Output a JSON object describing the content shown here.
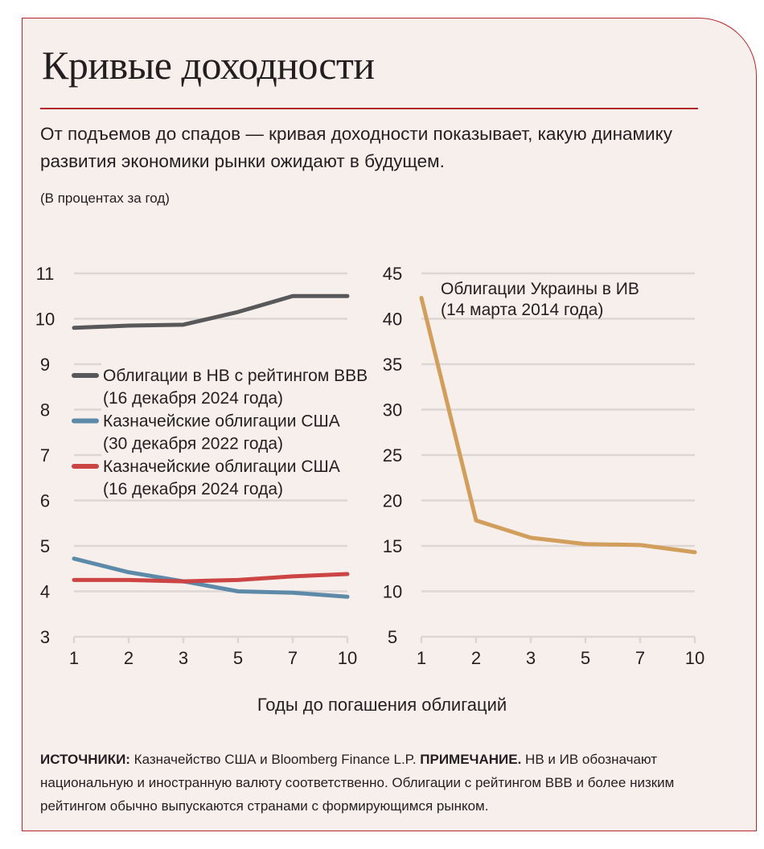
{
  "title": "Кривые доходности",
  "subtitle": "От подъемов до спадов — кривая доходности показывает, какую динамику развития экономики рынки ожидают в будущем.",
  "unit": "(В процентах за год)",
  "xlabel": "Годы до погашения облигаций",
  "footer": {
    "sources_label": "ИСТОЧНИКИ:",
    "sources_text": " Казначейство США и Bloomberg Finance L.P.  ",
    "note_label": "ПРИМЕЧАНИЕ.",
    "note_text": " НВ и ИВ обозначают национальную и иностранную валюту соответственно. Облигации с рейтингом BBB и более низким рейтингом обычно выпускаются странами с формирующимся рынком."
  },
  "chart_data": [
    {
      "type": "line",
      "categories": [
        "1",
        "2",
        "3",
        "5",
        "7",
        "10"
      ],
      "ylim": [
        3,
        11
      ],
      "yticks": [
        "3",
        "4",
        "5",
        "6",
        "7",
        "8",
        "9",
        "10",
        "11"
      ],
      "grid": true,
      "legend": "center-left",
      "series": [
        {
          "name": "Облигации в НВ с рейтингом BBB",
          "name2": "(16 декабря 2024 года)",
          "color": "#58585a",
          "values": [
            9.8,
            9.85,
            9.87,
            10.15,
            10.5,
            10.5
          ]
        },
        {
          "name": "Казначейские облигации США",
          "name2": "(30 декабря 2022 года)",
          "color": "#5d8aa8",
          "values": [
            4.72,
            4.42,
            4.22,
            4.0,
            3.97,
            3.88
          ]
        },
        {
          "name": "Казначейские облигации США",
          "name2": "(16 декабря 2024 года)",
          "color": "#cc4444",
          "values": [
            4.25,
            4.25,
            4.22,
            4.25,
            4.33,
            4.38
          ]
        }
      ]
    },
    {
      "type": "line",
      "categories": [
        "1",
        "2",
        "3",
        "5",
        "7",
        "10"
      ],
      "ylim": [
        5,
        45
      ],
      "yticks": [
        "5",
        "10",
        "15",
        "20",
        "25",
        "30",
        "35",
        "40",
        "45"
      ],
      "grid": true,
      "legend": "top",
      "series": [
        {
          "name": "Облигации Украины в ИВ",
          "name2": "(14 марта 2014 года)",
          "color": "#d29e5c",
          "values": [
            42.3,
            17.8,
            15.9,
            15.2,
            15.1,
            14.3
          ]
        }
      ]
    }
  ]
}
